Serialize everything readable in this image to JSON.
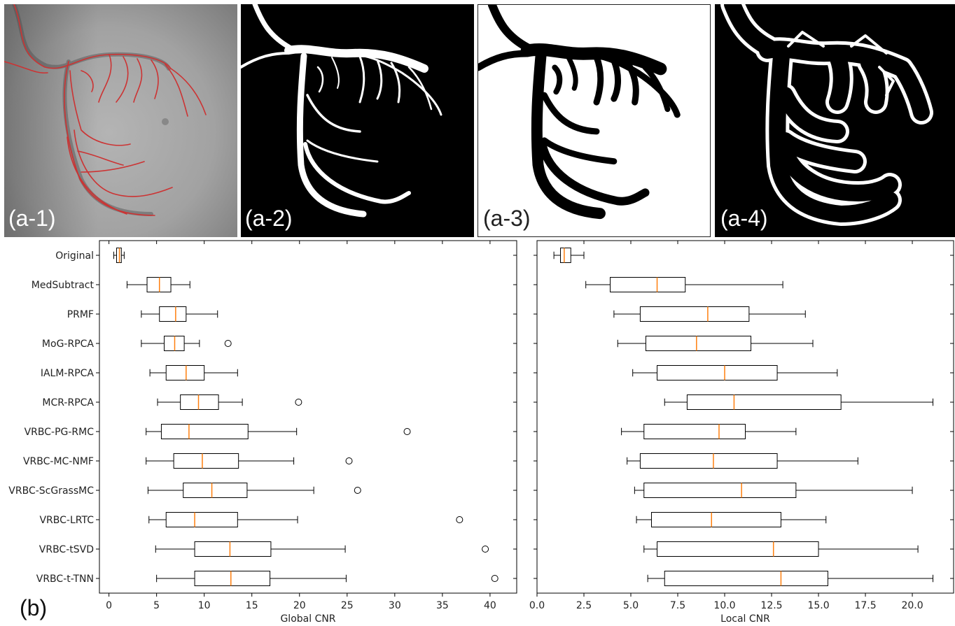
{
  "panels": [
    {
      "label": "(a-1)"
    },
    {
      "label": "(a-2)"
    },
    {
      "label": "(a-3)"
    },
    {
      "label": "(a-4)"
    }
  ],
  "part_b_label": "(b)",
  "chart_data": [
    {
      "type": "boxplot",
      "orientation": "horizontal",
      "xlabel": "Global CNR",
      "xlim": [
        -1,
        42.8
      ],
      "xticks": [
        0,
        5,
        10,
        15,
        20,
        25,
        30,
        35,
        40
      ],
      "median_color": "#ff7f0e",
      "categories": [
        "Original",
        "MedSubtract",
        "PRMF",
        "MoG-RPCA",
        "IALM-RPCA",
        "MCR-RPCA",
        "VRBC-PG-RMC",
        "VRBC-MC-NMF",
        "VRBC-ScGrassMC",
        "VRBC-LRTC",
        "VRBC-tSVD",
        "VRBC-t-TNN"
      ],
      "boxes": [
        {
          "whislo": 0.5,
          "q1": 0.8,
          "med": 1.1,
          "q3": 1.3,
          "whishi": 1.6,
          "fliers": []
        },
        {
          "whislo": 1.9,
          "q1": 4.0,
          "med": 5.3,
          "q3": 6.5,
          "whishi": 8.5,
          "fliers": []
        },
        {
          "whislo": 3.4,
          "q1": 5.3,
          "med": 7.0,
          "q3": 8.1,
          "whishi": 11.4,
          "fliers": []
        },
        {
          "whislo": 3.4,
          "q1": 5.8,
          "med": 6.9,
          "q3": 7.9,
          "whishi": 9.5,
          "fliers": [
            12.5
          ]
        },
        {
          "whislo": 4.3,
          "q1": 6.0,
          "med": 8.1,
          "q3": 10.0,
          "whishi": 13.5,
          "fliers": []
        },
        {
          "whislo": 5.1,
          "q1": 7.5,
          "med": 9.4,
          "q3": 11.5,
          "whishi": 14.0,
          "fliers": [
            19.9
          ]
        },
        {
          "whislo": 3.9,
          "q1": 5.5,
          "med": 8.4,
          "q3": 14.6,
          "whishi": 19.7,
          "fliers": [
            31.3
          ]
        },
        {
          "whislo": 3.9,
          "q1": 6.8,
          "med": 9.8,
          "q3": 13.6,
          "whishi": 19.4,
          "fliers": [
            25.2
          ]
        },
        {
          "whislo": 4.1,
          "q1": 7.8,
          "med": 10.8,
          "q3": 14.5,
          "whishi": 21.5,
          "fliers": [
            26.1
          ]
        },
        {
          "whislo": 4.2,
          "q1": 6.0,
          "med": 9.0,
          "q3": 13.5,
          "whishi": 19.8,
          "fliers": [
            36.8
          ]
        },
        {
          "whislo": 4.9,
          "q1": 9.0,
          "med": 12.7,
          "q3": 17.0,
          "whishi": 24.8,
          "fliers": [
            39.5
          ]
        },
        {
          "whislo": 5.0,
          "q1": 9.0,
          "med": 12.8,
          "q3": 16.9,
          "whishi": 24.9,
          "fliers": [
            40.5
          ]
        }
      ]
    },
    {
      "type": "boxplot",
      "orientation": "horizontal",
      "xlabel": "Local CNR",
      "xlim": [
        0,
        22.2
      ],
      "xticks": [
        "0.0",
        "2.5",
        "5.0",
        "7.5",
        "10.0",
        "12.5",
        "15.0",
        "17.5",
        "20.0"
      ],
      "median_color": "#ff7f0e",
      "categories": [
        "Original",
        "MedSubtract",
        "PRMF",
        "MoG-RPCA",
        "IALM-RPCA",
        "MCR-RPCA",
        "VRBC-PG-RMC",
        "VRBC-MC-NMF",
        "VRBC-ScGrassMC",
        "VRBC-LRTC",
        "VRBC-tSVD",
        "VRBC-t-TNN"
      ],
      "boxes": [
        {
          "whislo": 0.9,
          "q1": 1.25,
          "med": 1.45,
          "q3": 1.8,
          "whishi": 2.5,
          "fliers": []
        },
        {
          "whislo": 2.6,
          "q1": 3.9,
          "med": 6.4,
          "q3": 7.9,
          "whishi": 13.1,
          "fliers": []
        },
        {
          "whislo": 4.1,
          "q1": 5.5,
          "med": 9.1,
          "q3": 11.3,
          "whishi": 14.3,
          "fliers": []
        },
        {
          "whislo": 4.3,
          "q1": 5.8,
          "med": 8.5,
          "q3": 11.4,
          "whishi": 14.7,
          "fliers": []
        },
        {
          "whislo": 5.1,
          "q1": 6.4,
          "med": 10.0,
          "q3": 12.8,
          "whishi": 16.0,
          "fliers": []
        },
        {
          "whislo": 6.8,
          "q1": 8.0,
          "med": 10.5,
          "q3": 16.2,
          "whishi": 21.1,
          "fliers": []
        },
        {
          "whislo": 4.5,
          "q1": 5.7,
          "med": 9.7,
          "q3": 11.1,
          "whishi": 13.8,
          "fliers": []
        },
        {
          "whislo": 4.8,
          "q1": 5.5,
          "med": 9.4,
          "q3": 12.8,
          "whishi": 17.1,
          "fliers": []
        },
        {
          "whislo": 5.2,
          "q1": 5.7,
          "med": 10.9,
          "q3": 13.8,
          "whishi": 20.0,
          "fliers": []
        },
        {
          "whislo": 5.3,
          "q1": 6.1,
          "med": 9.3,
          "q3": 13.0,
          "whishi": 15.4,
          "fliers": []
        },
        {
          "whislo": 5.7,
          "q1": 6.4,
          "med": 12.6,
          "q3": 15.0,
          "whishi": 20.3,
          "fliers": []
        },
        {
          "whislo": 5.9,
          "q1": 6.8,
          "med": 13.0,
          "q3": 15.5,
          "whishi": 21.1,
          "fliers": []
        }
      ]
    }
  ]
}
